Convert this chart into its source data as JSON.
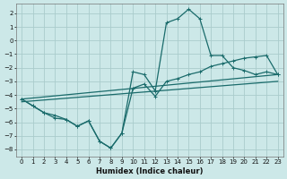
{
  "xlabel": "Humidex (Indice chaleur)",
  "bg_color": "#cce8e8",
  "grid_color": "#aacccc",
  "line_color": "#1a6b6b",
  "xlim": [
    -0.5,
    23.5
  ],
  "ylim": [
    -8.5,
    2.7
  ],
  "yticks": [
    -8,
    -7,
    -6,
    -5,
    -4,
    -3,
    -2,
    -1,
    0,
    1,
    2
  ],
  "xticks": [
    0,
    1,
    2,
    3,
    4,
    5,
    6,
    7,
    8,
    9,
    10,
    11,
    12,
    13,
    14,
    15,
    16,
    17,
    18,
    19,
    20,
    21,
    22,
    23
  ],
  "curve1_x": [
    0,
    1,
    2,
    3,
    4,
    5,
    6,
    7,
    8,
    9,
    10,
    11,
    12,
    13,
    14,
    15,
    16,
    17,
    18,
    19,
    20,
    21,
    22,
    23
  ],
  "curve1_y": [
    -4.3,
    -4.8,
    -5.3,
    -5.7,
    -5.8,
    -6.3,
    -5.9,
    -7.4,
    -7.9,
    -6.8,
    -2.3,
    -2.5,
    -3.7,
    1.3,
    1.6,
    2.3,
    1.6,
    -1.1,
    -1.1,
    -2.0,
    -2.2,
    -2.5,
    -2.3,
    -2.5
  ],
  "curve2_x": [
    0,
    1,
    2,
    3,
    4,
    5,
    6,
    7,
    8,
    9,
    10,
    11,
    12,
    13,
    14,
    15,
    16,
    17,
    18,
    19,
    20,
    21,
    22,
    23
  ],
  "curve2_y": [
    -4.3,
    -4.8,
    -5.3,
    -5.5,
    -5.8,
    -6.3,
    -5.9,
    -7.4,
    -7.9,
    -6.8,
    -3.5,
    -3.2,
    -4.1,
    -3.0,
    -2.8,
    -2.5,
    -2.3,
    -1.9,
    -1.7,
    -1.5,
    -1.3,
    -1.2,
    -1.1,
    -2.5
  ],
  "trend1_x": [
    0,
    23
  ],
  "trend1_y": [
    -4.3,
    -2.5
  ],
  "trend2_x": [
    0,
    23
  ],
  "trend2_y": [
    -4.5,
    -3.0
  ]
}
